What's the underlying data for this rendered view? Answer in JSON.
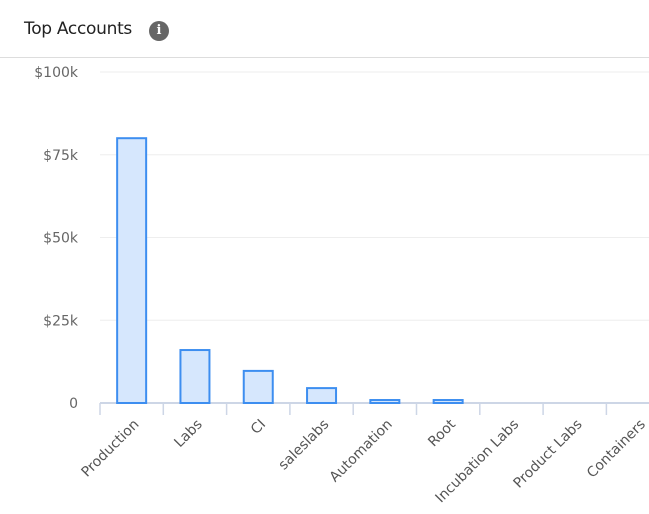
{
  "header": {
    "title": "Top Accounts",
    "info_icon": "info-icon"
  },
  "chart_data": {
    "type": "bar",
    "title": "",
    "xlabel": "",
    "ylabel": "",
    "categories": [
      "Production",
      "Labs",
      "CI",
      "saleslabs",
      "Automation",
      "Root",
      "Incubation Labs",
      "Product Labs",
      "Containers"
    ],
    "values": [
      80000,
      16000,
      9700,
      4500,
      900,
      900,
      0,
      0,
      0
    ],
    "ylim": [
      0,
      100000
    ],
    "yticks": [
      0,
      25000,
      50000,
      75000,
      100000
    ],
    "ytick_labels": [
      "0",
      "$25k",
      "$50k",
      "$75k",
      "$100k"
    ],
    "grid": true,
    "colors": {
      "bar_fill": "#d6e7fd",
      "bar_stroke": "#3d8ef0",
      "axis": "#cdd6e6",
      "grid": "#eeeeee"
    }
  }
}
